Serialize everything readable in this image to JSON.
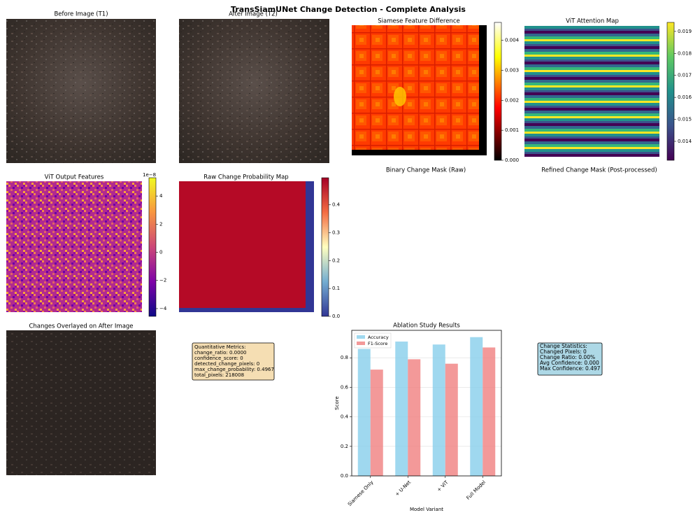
{
  "title": "TransSiamUNet Change Detection - Complete Analysis",
  "images": {
    "before": "Before Image (T1)",
    "after": "After Image (T2)",
    "overlay": "Changes Overlayed on After Image",
    "binary": "Binary Change Mask (Raw)",
    "refined": "Refined Change Mask (Post-processed)"
  },
  "heatmaps": [
    {
      "title": "Siamese Feature Difference",
      "colormap": "hot",
      "clim": [
        0,
        0.0046
      ],
      "cticks": [
        {
          "value": 0,
          "label": "0.000"
        },
        {
          "value": 0.001,
          "label": "0.001"
        },
        {
          "value": 0.002,
          "label": "0.002"
        },
        {
          "value": 0.003,
          "label": "0.003"
        },
        {
          "value": 0.004,
          "label": "0.004"
        }
      ]
    },
    {
      "title": "ViT Attention Map",
      "colormap": "viridis",
      "clim": [
        0.01314,
        0.01941
      ],
      "cticks": [
        0.014,
        0.015,
        0.016,
        0.017,
        0.018,
        0.019
      ]
    },
    {
      "title": "ViT Output Features",
      "colormap": "plasma",
      "clim": [
        -4.55,
        5.3
      ],
      "offset": "1e−8",
      "cticks": [
        {
          "value": -4,
          "label": "−4"
        },
        {
          "value": -2,
          "label": "−2"
        },
        0,
        2,
        4
      ]
    },
    {
      "title": "Raw Change Probability Map",
      "colormap": "RdYlBu_r",
      "clim": [
        0,
        0.497
      ],
      "cticks": [
        {
          "value": 0,
          "label": "0.0"
        },
        0.1,
        0.2,
        0.3,
        0.4
      ]
    }
  ],
  "metrics_box": {
    "lines": [
      "Quantitative Metrics:",
      "change_ratio: 0.0000",
      "confidence_score: 0",
      "detected_change_pixels: 0",
      "max_change_probability: 0.4967",
      "total_pixels: 218008"
    ]
  },
  "stats_box": {
    "lines": [
      "Change Statistics:",
      "Changed Pixels: 0",
      "Change Ratio: 0.00%",
      "Avg Confidence: 0.000",
      "Max Confidence: 0.497"
    ]
  },
  "chart_data": {
    "type": "bar",
    "title": "Ablation Study Results",
    "x_label": "Model Variant",
    "y_label": "Score",
    "categories": [
      "Siamese Only",
      "+ U-Net",
      "+ ViT",
      "Full Model"
    ],
    "series": [
      {
        "name": "Accuracy",
        "color": "#87ceeb",
        "values": [
          0.86,
          0.91,
          0.89,
          0.94
        ]
      },
      {
        "name": "F1-Score",
        "color": "#f08080",
        "values": [
          0.72,
          0.79,
          0.76,
          0.87
        ]
      }
    ],
    "ylim": [
      0,
      0.986
    ],
    "yticks": [
      {
        "value": 0,
        "label": "0.0"
      },
      0.2,
      0.4,
      0.6,
      0.8
    ],
    "grid": true,
    "legend": "upper left"
  }
}
